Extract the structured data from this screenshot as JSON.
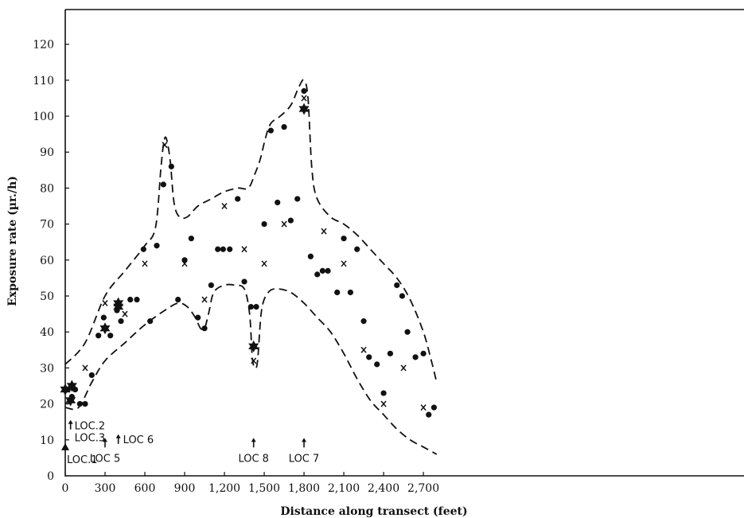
{
  "chart_data": {
    "type": "scatter",
    "title": "",
    "xlabel": "Distance along transect (feet)",
    "ylabel": "Exposure rate (µr./h)",
    "xlim": [
      0,
      2800
    ],
    "ylim": [
      0,
      125
    ],
    "x_ticks": [
      0,
      300,
      600,
      900,
      1200,
      1500,
      1800,
      2100,
      2400,
      2700
    ],
    "x_tick_labels": [
      "0",
      "300",
      "600",
      "900",
      "1,200",
      "1,500",
      "1,800",
      "2,100",
      "2,400",
      "2,700"
    ],
    "y_ticks": [
      0,
      10,
      20,
      30,
      40,
      50,
      60,
      70,
      80,
      90,
      100,
      110,
      120
    ],
    "y_tick_labels": [
      "0",
      "10",
      "20",
      "30",
      "40",
      "50",
      "60",
      "70",
      "80",
      "90",
      "100",
      "110",
      "120"
    ],
    "grid": false,
    "legend": "none",
    "series": [
      {
        "marker": "dot",
        "points": [
          [
            20,
            24
          ],
          [
            50,
            22
          ],
          [
            75,
            24
          ],
          [
            110,
            20
          ],
          [
            150,
            20
          ],
          [
            200,
            28
          ],
          [
            250,
            39
          ],
          [
            290,
            44
          ],
          [
            340,
            39
          ],
          [
            390,
            46
          ],
          [
            420,
            43
          ],
          [
            490,
            49
          ],
          [
            540,
            49
          ],
          [
            590,
            63
          ],
          [
            640,
            43
          ],
          [
            690,
            64
          ],
          [
            740,
            81
          ],
          [
            800,
            86
          ],
          [
            850,
            49
          ],
          [
            900,
            60
          ],
          [
            950,
            66
          ],
          [
            1000,
            44
          ],
          [
            1050,
            41
          ],
          [
            1100,
            53
          ],
          [
            1150,
            63
          ],
          [
            1190,
            63
          ],
          [
            1240,
            63
          ],
          [
            1300,
            77
          ],
          [
            1350,
            54
          ],
          [
            1400,
            47
          ],
          [
            1440,
            47
          ],
          [
            1500,
            70
          ],
          [
            1550,
            96
          ],
          [
            1600,
            76
          ],
          [
            1650,
            97
          ],
          [
            1700,
            71
          ],
          [
            1750,
            77
          ],
          [
            1800,
            107
          ],
          [
            1850,
            61
          ],
          [
            1900,
            56
          ],
          [
            1940,
            57
          ],
          [
            1980,
            57
          ],
          [
            2050,
            51
          ],
          [
            2100,
            66
          ],
          [
            2150,
            51
          ],
          [
            2200,
            63
          ],
          [
            2250,
            43
          ],
          [
            2290,
            33
          ],
          [
            2350,
            31
          ],
          [
            2400,
            23
          ],
          [
            2450,
            34
          ],
          [
            2500,
            53
          ],
          [
            2540,
            50
          ],
          [
            2580,
            40
          ],
          [
            2640,
            33
          ],
          [
            2700,
            34
          ],
          [
            2740,
            17
          ],
          [
            2780,
            19
          ]
        ]
      },
      {
        "marker": "x",
        "points": [
          [
            50,
            21
          ],
          [
            150,
            30
          ],
          [
            300,
            48
          ],
          [
            450,
            45
          ],
          [
            600,
            59
          ],
          [
            750,
            92
          ],
          [
            900,
            59
          ],
          [
            1050,
            49
          ],
          [
            1200,
            75
          ],
          [
            1350,
            63
          ],
          [
            1420,
            32
          ],
          [
            1500,
            59
          ],
          [
            1650,
            70
          ],
          [
            1800,
            105
          ],
          [
            1950,
            68
          ],
          [
            2100,
            59
          ],
          [
            2250,
            35
          ],
          [
            2400,
            20
          ],
          [
            2550,
            30
          ],
          [
            2700,
            19
          ]
        ]
      },
      {
        "marker": "star",
        "points": [
          [
            0,
            24
          ],
          [
            50,
            25
          ],
          [
            40,
            21
          ],
          [
            300,
            41
          ],
          [
            400,
            48
          ],
          [
            400,
            47
          ],
          [
            1420,
            36
          ],
          [
            1800,
            102
          ]
        ]
      },
      {
        "name": "Upper envelope",
        "marker": "dashed-line",
        "points": [
          [
            0,
            31
          ],
          [
            150,
            37
          ],
          [
            300,
            50
          ],
          [
            450,
            57
          ],
          [
            600,
            64
          ],
          [
            680,
            69
          ],
          [
            720,
            85
          ],
          [
            740,
            92
          ],
          [
            760,
            94
          ],
          [
            790,
            88
          ],
          [
            820,
            76
          ],
          [
            860,
            72
          ],
          [
            920,
            72
          ],
          [
            1000,
            75
          ],
          [
            1100,
            77
          ],
          [
            1200,
            79
          ],
          [
            1300,
            80
          ],
          [
            1380,
            80
          ],
          [
            1430,
            84
          ],
          [
            1470,
            88
          ],
          [
            1510,
            94
          ],
          [
            1550,
            98
          ],
          [
            1620,
            100
          ],
          [
            1700,
            103
          ],
          [
            1760,
            108
          ],
          [
            1800,
            110
          ],
          [
            1830,
            105
          ],
          [
            1860,
            85
          ],
          [
            1900,
            77
          ],
          [
            2000,
            72
          ],
          [
            2100,
            70
          ],
          [
            2200,
            67
          ],
          [
            2300,
            63
          ],
          [
            2400,
            59
          ],
          [
            2500,
            55
          ],
          [
            2600,
            49
          ],
          [
            2700,
            40
          ],
          [
            2760,
            32
          ],
          [
            2800,
            26
          ]
        ]
      },
      {
        "name": "Lower envelope",
        "marker": "dashed-line",
        "points": [
          [
            0,
            19
          ],
          [
            100,
            19
          ],
          [
            200,
            26
          ],
          [
            300,
            32
          ],
          [
            450,
            37
          ],
          [
            600,
            42
          ],
          [
            750,
            46
          ],
          [
            850,
            48
          ],
          [
            920,
            47
          ],
          [
            980,
            44
          ],
          [
            1020,
            41
          ],
          [
            1050,
            41
          ],
          [
            1080,
            45
          ],
          [
            1120,
            51
          ],
          [
            1200,
            53
          ],
          [
            1280,
            53
          ],
          [
            1350,
            52
          ],
          [
            1390,
            45
          ],
          [
            1410,
            33
          ],
          [
            1430,
            30
          ],
          [
            1450,
            32
          ],
          [
            1480,
            46
          ],
          [
            1530,
            51
          ],
          [
            1600,
            52
          ],
          [
            1700,
            51
          ],
          [
            1800,
            48
          ],
          [
            1900,
            44
          ],
          [
            2000,
            40
          ],
          [
            2100,
            34
          ],
          [
            2200,
            27
          ],
          [
            2300,
            21
          ],
          [
            2400,
            17
          ],
          [
            2500,
            13
          ],
          [
            2600,
            10
          ],
          [
            2700,
            8
          ],
          [
            2800,
            6
          ]
        ]
      }
    ],
    "annotations": [
      {
        "text": "LOC.1",
        "x": 0,
        "y": 8,
        "marker": "triangle"
      },
      {
        "text": "LOC.2",
        "x": 40,
        "y": 14,
        "marker": "arrow"
      },
      {
        "text": "LOC.3",
        "x": 40,
        "y": 11,
        "marker": "none"
      },
      {
        "text": "LOC 5",
        "x": 300,
        "y": 9,
        "marker": "arrow"
      },
      {
        "text": "LOC 6",
        "x": 400,
        "y": 10,
        "marker": "arrow"
      },
      {
        "text": "LOC 8",
        "x": 1420,
        "y": 9,
        "marker": "arrow"
      },
      {
        "text": "LOC 7",
        "x": 1800,
        "y": 9,
        "marker": "arrow"
      }
    ]
  }
}
